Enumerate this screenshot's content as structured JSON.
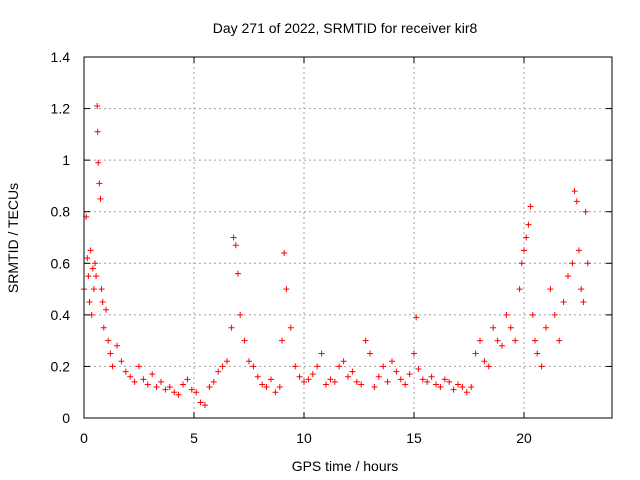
{
  "chart_data": {
    "type": "scatter",
    "title": "Day 271 of 2022, SRMTID for receiver kir8",
    "xlabel": "GPS time / hours",
    "ylabel": "SRMTID / TECUs",
    "xlim": [
      0,
      24
    ],
    "ylim": [
      0,
      1.4
    ],
    "xticks": [
      0,
      5,
      10,
      15,
      20
    ],
    "xtick_labels": [
      "0",
      "5",
      "10",
      "15",
      "20"
    ],
    "yticks": [
      0,
      0.2,
      0.4,
      0.6,
      0.8,
      1.0,
      1.2,
      1.4
    ],
    "ytick_labels": [
      "0",
      "0.2",
      "0.4",
      "0.6",
      "0.8",
      "1",
      "1.2",
      "1.4"
    ],
    "grid": true,
    "marker": "+",
    "color": "#ff0000",
    "series": [
      {
        "name": "SRMTID",
        "x": [
          0.0,
          0.1,
          0.15,
          0.2,
          0.25,
          0.3,
          0.35,
          0.4,
          0.45,
          0.5,
          0.55,
          0.6,
          0.62,
          0.65,
          0.7,
          0.75,
          0.8,
          0.85,
          0.9,
          1.0,
          1.1,
          1.2,
          1.3,
          1.5,
          1.7,
          1.9,
          2.1,
          2.3,
          2.5,
          2.7,
          2.9,
          3.1,
          3.3,
          3.5,
          3.7,
          3.9,
          4.1,
          4.3,
          4.5,
          4.7,
          4.9,
          5.1,
          5.3,
          5.5,
          5.7,
          5.9,
          6.1,
          6.3,
          6.5,
          6.7,
          6.8,
          6.9,
          7.0,
          7.1,
          7.3,
          7.5,
          7.7,
          7.9,
          8.1,
          8.3,
          8.5,
          8.7,
          8.9,
          9.0,
          9.1,
          9.2,
          9.4,
          9.6,
          9.8,
          10.0,
          10.2,
          10.4,
          10.6,
          10.8,
          11.0,
          11.2,
          11.4,
          11.6,
          11.8,
          12.0,
          12.2,
          12.4,
          12.6,
          12.8,
          13.0,
          13.2,
          13.4,
          13.6,
          13.8,
          14.0,
          14.2,
          14.4,
          14.6,
          14.8,
          15.0,
          15.1,
          15.2,
          15.4,
          15.6,
          15.8,
          16.0,
          16.2,
          16.4,
          16.6,
          16.8,
          17.0,
          17.2,
          17.4,
          17.6,
          17.8,
          18.0,
          18.2,
          18.4,
          18.6,
          18.8,
          19.0,
          19.2,
          19.4,
          19.6,
          19.8,
          19.9,
          20.0,
          20.1,
          20.2,
          20.3,
          20.4,
          20.5,
          20.6,
          20.8,
          21.0,
          21.2,
          21.4,
          21.6,
          21.8,
          22.0,
          22.2,
          22.3,
          22.4,
          22.5,
          22.6,
          22.7,
          22.8,
          22.9
        ],
        "y": [
          0.5,
          0.78,
          0.62,
          0.55,
          0.45,
          0.65,
          0.4,
          0.58,
          0.5,
          0.6,
          0.55,
          1.21,
          1.11,
          0.99,
          0.91,
          0.85,
          0.5,
          0.45,
          0.35,
          0.42,
          0.3,
          0.25,
          0.2,
          0.28,
          0.22,
          0.18,
          0.16,
          0.14,
          0.2,
          0.15,
          0.13,
          0.17,
          0.12,
          0.14,
          0.11,
          0.12,
          0.1,
          0.09,
          0.13,
          0.15,
          0.11,
          0.1,
          0.06,
          0.05,
          0.12,
          0.14,
          0.18,
          0.2,
          0.22,
          0.35,
          0.7,
          0.67,
          0.56,
          0.4,
          0.3,
          0.22,
          0.2,
          0.16,
          0.13,
          0.12,
          0.15,
          0.1,
          0.12,
          0.3,
          0.64,
          0.5,
          0.35,
          0.2,
          0.16,
          0.14,
          0.15,
          0.17,
          0.2,
          0.25,
          0.13,
          0.15,
          0.14,
          0.2,
          0.22,
          0.16,
          0.18,
          0.14,
          0.13,
          0.3,
          0.25,
          0.12,
          0.16,
          0.2,
          0.14,
          0.22,
          0.18,
          0.15,
          0.13,
          0.17,
          0.25,
          0.39,
          0.19,
          0.15,
          0.14,
          0.16,
          0.13,
          0.12,
          0.15,
          0.14,
          0.11,
          0.13,
          0.12,
          0.1,
          0.12,
          0.25,
          0.3,
          0.22,
          0.2,
          0.35,
          0.3,
          0.28,
          0.4,
          0.35,
          0.3,
          0.5,
          0.6,
          0.65,
          0.7,
          0.75,
          0.82,
          0.4,
          0.3,
          0.25,
          0.2,
          0.35,
          0.5,
          0.4,
          0.3,
          0.45,
          0.55,
          0.6,
          0.88,
          0.84,
          0.65,
          0.5,
          0.45,
          0.8,
          0.6
        ]
      }
    ]
  }
}
